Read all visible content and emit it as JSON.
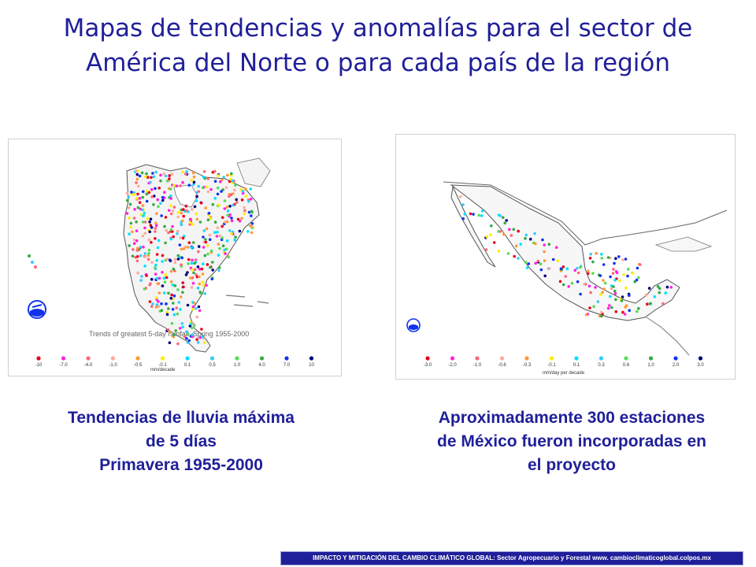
{
  "slide": {
    "title_line1": "Mapas de tendencias y anomalías para el sector de",
    "title_line2": "América del Norte o para cada país de la región"
  },
  "left_panel": {
    "map_title": "Trends of greatest 5-day rainfall, Spring 1955-2000",
    "legend_unit": "mm/decade",
    "legend": [
      {
        "label": "-10",
        "color": "#e8001c"
      },
      {
        "label": "-7.0",
        "color": "#ff22dd"
      },
      {
        "label": "-4.0",
        "color": "#ff6677"
      },
      {
        "label": "-1.0",
        "color": "#ffaa99"
      },
      {
        "label": "-0.5",
        "color": "#ff9933"
      },
      {
        "label": "-0.1",
        "color": "#ffee00"
      },
      {
        "label": "0.1",
        "color": "#00e0ff"
      },
      {
        "label": "0.5",
        "color": "#33ccff"
      },
      {
        "label": "1.0",
        "color": "#55dd55"
      },
      {
        "label": "4.0",
        "color": "#33aa44"
      },
      {
        "label": "7.0",
        "color": "#1133ee"
      },
      {
        "label": "10",
        "color": "#000080"
      }
    ],
    "caption_line1": "Tendencias de lluvia máxima",
    "caption_line2": "de 5 días",
    "caption_line3": "Primavera 1955-2000"
  },
  "right_panel": {
    "legend_unit": "mm/day per decade",
    "legend": [
      {
        "label": "-3.0",
        "color": "#e8001c"
      },
      {
        "label": "-2.0",
        "color": "#ff22dd"
      },
      {
        "label": "-1.0",
        "color": "#ff6677"
      },
      {
        "label": "-0.6",
        "color": "#ffaa99"
      },
      {
        "label": "-0.3",
        "color": "#ff9933"
      },
      {
        "label": "-0.1",
        "color": "#ffee00"
      },
      {
        "label": "0.1",
        "color": "#00e0ff"
      },
      {
        "label": "0.3",
        "color": "#33ccff"
      },
      {
        "label": "0.6",
        "color": "#55dd55"
      },
      {
        "label": "1.0",
        "color": "#33aa44"
      },
      {
        "label": "2.0",
        "color": "#1133ee"
      },
      {
        "label": "3.0",
        "color": "#000080"
      }
    ],
    "caption_line1": "Aproximadamente 300 estaciones",
    "caption_line2": "de México fueron incorporadas en",
    "caption_line3": "el proyecto"
  },
  "footer": {
    "text": "IMPACTO Y MITIGACIÓN DEL CAMBIO CLIMÁTICO GLOBAL: Sector Agropecuario y Forestal www. cambioclimaticoglobal.colpos.mx"
  },
  "colors": {
    "title": "#1f1f9a",
    "footer_bg": "#1f1f9a"
  }
}
